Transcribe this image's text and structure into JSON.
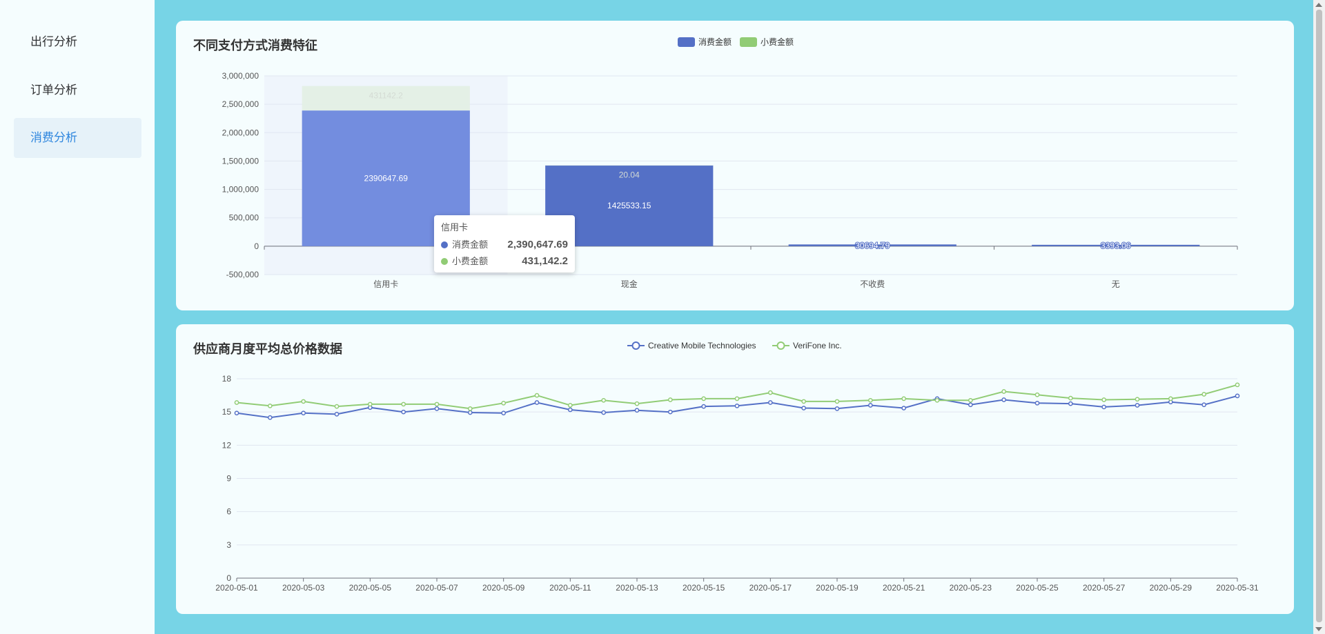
{
  "sidebar": {
    "items": [
      {
        "label": "出行分析",
        "active": false
      },
      {
        "label": "订单分析",
        "active": false
      },
      {
        "label": "消费分析",
        "active": true
      }
    ]
  },
  "colors": {
    "series_blue": "#5470c6",
    "series_green": "#91cc75",
    "background": "#77d4e6",
    "card": "#f5fdfe",
    "active_nav": "#2e86de"
  },
  "tooltip": {
    "title": "信用卡",
    "rows": [
      {
        "name": "消费金额",
        "value": "2,390,647.69",
        "color": "#5470c6"
      },
      {
        "name": "小费金额",
        "value": "431,142.2",
        "color": "#91cc75"
      }
    ]
  },
  "chart_data": [
    {
      "type": "bar",
      "title": "不同支付方式消费特征",
      "stacked": true,
      "categories": [
        "信用卡",
        "现金",
        "不收费",
        "无"
      ],
      "series": [
        {
          "name": "消费金额",
          "values": [
            2390647.69,
            1425533.15,
            30694.79,
            3393.06
          ],
          "labels": [
            "2390647.69",
            "1425533.15",
            "30694.79",
            "3393.06"
          ]
        },
        {
          "name": "小费金额",
          "values": [
            431142.2,
            20.04,
            0,
            0
          ],
          "labels": [
            "431142.2",
            "20.04",
            "",
            ""
          ]
        }
      ],
      "ylim": [
        -500000,
        3000000
      ],
      "yticks": [
        3000000,
        2500000,
        2000000,
        1500000,
        1000000,
        500000,
        0,
        -500000
      ],
      "ytick_labels": [
        "3,000,000",
        "2,500,000",
        "2,000,000",
        "1,500,000",
        "1,000,000",
        "500,000",
        "0",
        "-500,000"
      ],
      "legend": "top-center",
      "grid": true,
      "highlighted_category": "信用卡"
    },
    {
      "type": "line",
      "title": "供应商月度平均总价格数据",
      "x": [
        "2020-05-01",
        "2020-05-02",
        "2020-05-03",
        "2020-05-04",
        "2020-05-05",
        "2020-05-06",
        "2020-05-07",
        "2020-05-08",
        "2020-05-09",
        "2020-05-10",
        "2020-05-11",
        "2020-05-12",
        "2020-05-13",
        "2020-05-14",
        "2020-05-15",
        "2020-05-16",
        "2020-05-17",
        "2020-05-18",
        "2020-05-19",
        "2020-05-20",
        "2020-05-21",
        "2020-05-22",
        "2020-05-23",
        "2020-05-24",
        "2020-05-25",
        "2020-05-26",
        "2020-05-27",
        "2020-05-28",
        "2020-05-29",
        "2020-05-30",
        "2020-05-31"
      ],
      "xtick_labels": [
        "2020-05-01",
        "2020-05-03",
        "2020-05-05",
        "2020-05-07",
        "2020-05-09",
        "2020-05-11",
        "2020-05-13",
        "2020-05-15",
        "2020-05-17",
        "2020-05-19",
        "2020-05-21",
        "2020-05-23",
        "2020-05-25",
        "2020-05-27",
        "2020-05-29",
        "2020-05-31"
      ],
      "series": [
        {
          "name": "Creative Mobile Technologies",
          "values": [
            14.9,
            14.5,
            14.9,
            14.8,
            15.4,
            15.0,
            15.3,
            14.95,
            14.9,
            15.85,
            15.2,
            14.95,
            15.15,
            15.0,
            15.5,
            15.55,
            15.85,
            15.35,
            15.3,
            15.6,
            15.35,
            16.2,
            15.65,
            16.1,
            15.8,
            15.75,
            15.45,
            15.6,
            15.9,
            15.65,
            16.45
          ]
        },
        {
          "name": "VeriFone Inc.",
          "values": [
            15.85,
            15.55,
            15.95,
            15.5,
            15.7,
            15.7,
            15.7,
            15.3,
            15.8,
            16.5,
            15.6,
            16.05,
            15.75,
            16.1,
            16.2,
            16.2,
            16.75,
            15.95,
            15.95,
            16.05,
            16.2,
            16.05,
            16.05,
            16.85,
            16.55,
            16.25,
            16.1,
            16.15,
            16.2,
            16.6,
            17.45
          ]
        }
      ],
      "ylim": [
        0,
        18
      ],
      "yticks": [
        0,
        3,
        6,
        9,
        12,
        15,
        18
      ],
      "legend": "top-center",
      "grid": true
    }
  ]
}
